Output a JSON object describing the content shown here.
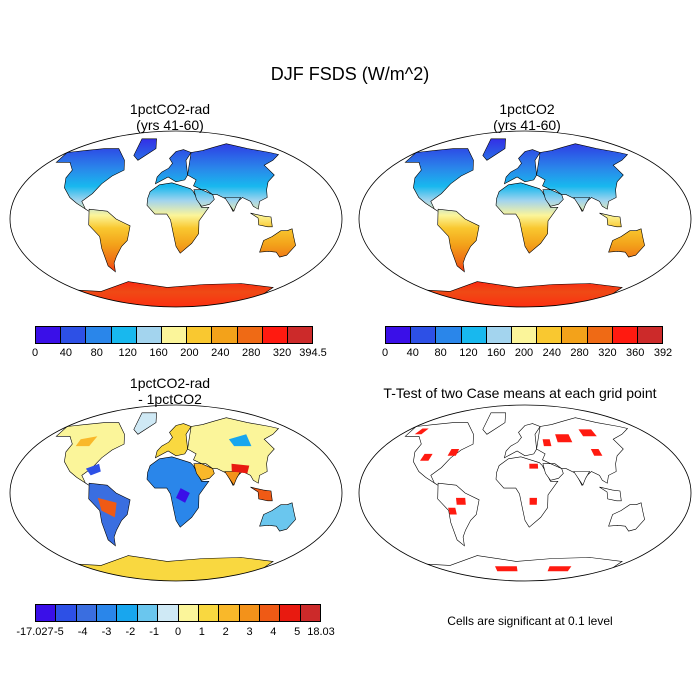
{
  "title": "DJF FSDS (W/m^2)",
  "panels": [
    {
      "title": "1pctCO2-rad\n(yrs 41-60)",
      "type": "abs"
    },
    {
      "title": "1pctCO2\n(yrs 41-60)",
      "type": "abs"
    },
    {
      "title": "1pctCO2-rad\n- 1pctCO2",
      "type": "diff"
    },
    {
      "title": "T-Test of two Case means at each grid point",
      "type": "ttest"
    }
  ],
  "colorbars": {
    "abs1": {
      "colors": [
        "#3a0fe8",
        "#2d50e6",
        "#2a86ea",
        "#18b8ee",
        "#a3d4ee",
        "#fbf59a",
        "#f9c830",
        "#f3a21a",
        "#ef6a15",
        "#ff1a10",
        "#cc2a2a"
      ],
      "labels": [
        "0",
        "40",
        "80",
        "120",
        "160",
        "200",
        "240",
        "280",
        "320",
        "394.5"
      ]
    },
    "abs2": {
      "colors": [
        "#3a0fe8",
        "#2d50e6",
        "#2a86ea",
        "#18b8ee",
        "#a3d4ee",
        "#fbf59a",
        "#f9c830",
        "#f3a21a",
        "#ef6a15",
        "#ff1a10",
        "#cc2a2a"
      ],
      "labels": [
        "0",
        "40",
        "80",
        "120",
        "160",
        "200",
        "240",
        "280",
        "320",
        "360",
        "392"
      ]
    },
    "diff": {
      "colors": [
        "#3a0fe8",
        "#2d50e6",
        "#3a6ee0",
        "#2a86ea",
        "#18a6ee",
        "#6ac6ee",
        "#cfe9f5",
        "#fbf59a",
        "#f9d840",
        "#f9b82a",
        "#f3921a",
        "#ef5a15",
        "#e81a10",
        "#cc2a2a"
      ],
      "labels": [
        "-17.027",
        "-5",
        "-4",
        "-3",
        "-2",
        "-1",
        "0",
        "1",
        "2",
        "3",
        "4",
        "5",
        "18.03"
      ]
    }
  },
  "ttest_note": "Cells are significant at 0.1 level"
}
